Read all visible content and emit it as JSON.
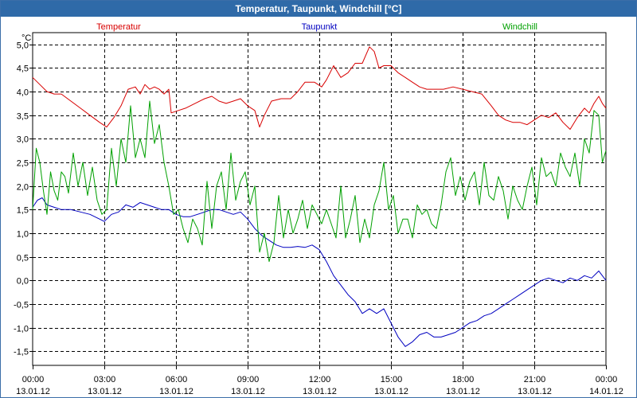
{
  "chart_data": {
    "type": "line",
    "title": "Temperatur, Taupunkt, Windchill [°C]",
    "ylabel": "°C",
    "ylim": [
      -1.8,
      5.25
    ],
    "xlim": [
      0,
      24
    ],
    "grid": true,
    "y_ticks": [
      "5,0",
      "4,5",
      "4,0",
      "3,5",
      "3,0",
      "2,5",
      "2,0",
      "1,5",
      "1,0",
      "0,5",
      "0,0",
      "-0,5",
      "-1,0",
      "-1,5"
    ],
    "y_tick_values": [
      5.0,
      4.5,
      4.0,
      3.5,
      3.0,
      2.5,
      2.0,
      1.5,
      1.0,
      0.5,
      0.0,
      -0.5,
      -1.0,
      -1.5
    ],
    "x_ticks": [
      {
        "hour": 0,
        "time": "00:00",
        "date": "13.01.12"
      },
      {
        "hour": 3,
        "time": "03:00",
        "date": "13.01.12"
      },
      {
        "hour": 6,
        "time": "06:00",
        "date": "13.01.12"
      },
      {
        "hour": 9,
        "time": "09:00",
        "date": "13.01.12"
      },
      {
        "hour": 12,
        "time": "12:00",
        "date": "13.01.12"
      },
      {
        "hour": 15,
        "time": "15:00",
        "date": "13.01.12"
      },
      {
        "hour": 18,
        "time": "18:00",
        "date": "13.01.12"
      },
      {
        "hour": 21,
        "time": "21:00",
        "date": "13.01.12"
      },
      {
        "hour": 24,
        "time": "00:00",
        "date": "14.01.12"
      }
    ],
    "series": [
      {
        "name": "Temperatur",
        "color": "#d80000",
        "x": [
          0,
          0.3,
          0.6,
          0.9,
          1.2,
          1.6,
          2.0,
          2.4,
          2.8,
          3.1,
          3.4,
          3.7,
          4.0,
          4.3,
          4.5,
          4.7,
          4.9,
          5.1,
          5.3,
          5.5,
          5.7,
          5.8,
          6.1,
          6.4,
          6.8,
          7.2,
          7.5,
          7.8,
          8.1,
          8.4,
          8.7,
          9.0,
          9.3,
          9.5,
          9.7,
          10.0,
          10.4,
          10.8,
          11.1,
          11.4,
          11.8,
          12.1,
          12.3,
          12.6,
          12.9,
          13.2,
          13.5,
          13.8,
          14.1,
          14.3,
          14.5,
          14.7,
          15.0,
          15.3,
          15.6,
          15.9,
          16.2,
          16.5,
          16.8,
          17.2,
          17.6,
          18.0,
          18.4,
          18.8,
          19.2,
          19.5,
          19.8,
          20.1,
          20.4,
          20.7,
          21.0,
          21.3,
          21.6,
          21.9,
          22.2,
          22.5,
          22.8,
          23.1,
          23.3,
          23.5,
          23.7,
          23.85,
          24.0
        ],
        "values": [
          4.3,
          4.15,
          4.0,
          3.95,
          3.95,
          3.8,
          3.65,
          3.5,
          3.35,
          3.25,
          3.45,
          3.7,
          4.05,
          4.1,
          3.95,
          4.15,
          4.05,
          4.1,
          4.05,
          3.95,
          4.05,
          3.55,
          3.6,
          3.65,
          3.75,
          3.85,
          3.9,
          3.8,
          3.75,
          3.8,
          3.85,
          3.7,
          3.6,
          3.25,
          3.5,
          3.8,
          3.85,
          3.85,
          4.0,
          4.2,
          4.2,
          4.1,
          4.25,
          4.55,
          4.3,
          4.4,
          4.6,
          4.6,
          4.95,
          4.85,
          4.5,
          4.55,
          4.55,
          4.4,
          4.3,
          4.2,
          4.1,
          4.05,
          4.05,
          4.05,
          4.1,
          4.05,
          4.0,
          3.95,
          3.7,
          3.5,
          3.4,
          3.35,
          3.35,
          3.3,
          3.4,
          3.5,
          3.45,
          3.55,
          3.35,
          3.2,
          3.45,
          3.65,
          3.55,
          3.75,
          3.9,
          3.75,
          3.65
        ]
      },
      {
        "name": "Taupunkt",
        "color": "#0000c0",
        "x": [
          0,
          0.2,
          0.4,
          0.6,
          0.9,
          1.2,
          1.6,
          2.0,
          2.4,
          2.8,
          3.0,
          3.3,
          3.6,
          3.9,
          4.2,
          4.5,
          4.8,
          5.1,
          5.4,
          5.7,
          6.0,
          6.3,
          6.6,
          6.9,
          7.2,
          7.5,
          7.8,
          8.1,
          8.4,
          8.7,
          9.0,
          9.3,
          9.6,
          9.9,
          10.2,
          10.5,
          10.8,
          11.1,
          11.4,
          11.7,
          12.0,
          12.3,
          12.6,
          12.9,
          13.2,
          13.5,
          13.8,
          14.1,
          14.4,
          14.7,
          15.0,
          15.3,
          15.6,
          15.9,
          16.2,
          16.5,
          16.8,
          17.1,
          17.4,
          17.7,
          18.0,
          18.3,
          18.6,
          18.9,
          19.2,
          19.5,
          19.8,
          20.1,
          20.4,
          20.7,
          21.0,
          21.3,
          21.6,
          21.9,
          22.2,
          22.5,
          22.8,
          23.1,
          23.4,
          23.7,
          24.0
        ],
        "values": [
          1.55,
          1.7,
          1.75,
          1.6,
          1.55,
          1.5,
          1.5,
          1.45,
          1.4,
          1.3,
          1.25,
          1.4,
          1.45,
          1.6,
          1.55,
          1.65,
          1.6,
          1.55,
          1.5,
          1.5,
          1.4,
          1.35,
          1.35,
          1.4,
          1.45,
          1.5,
          1.5,
          1.45,
          1.4,
          1.45,
          1.3,
          1.1,
          0.95,
          0.85,
          0.75,
          0.7,
          0.7,
          0.72,
          0.7,
          0.75,
          0.65,
          0.4,
          0.1,
          -0.1,
          -0.3,
          -0.45,
          -0.7,
          -0.6,
          -0.7,
          -0.6,
          -0.9,
          -1.2,
          -1.4,
          -1.3,
          -1.15,
          -1.1,
          -1.2,
          -1.2,
          -1.15,
          -1.1,
          -1.0,
          -0.9,
          -0.85,
          -0.75,
          -0.7,
          -0.6,
          -0.5,
          -0.4,
          -0.3,
          -0.2,
          -0.1,
          0.0,
          0.05,
          0.0,
          -0.05,
          0.05,
          0.0,
          0.1,
          0.05,
          0.2,
          0.0
        ]
      },
      {
        "name": "Windchill",
        "color": "#00a000",
        "x": [
          0,
          0.15,
          0.3,
          0.45,
          0.6,
          0.75,
          0.9,
          1.05,
          1.2,
          1.35,
          1.5,
          1.7,
          1.9,
          2.1,
          2.3,
          2.5,
          2.7,
          2.9,
          3.1,
          3.3,
          3.5,
          3.7,
          3.9,
          4.1,
          4.3,
          4.5,
          4.7,
          4.9,
          5.1,
          5.3,
          5.5,
          5.7,
          5.9,
          6.1,
          6.3,
          6.5,
          6.7,
          6.9,
          7.1,
          7.3,
          7.5,
          7.7,
          7.9,
          8.1,
          8.3,
          8.5,
          8.7,
          8.9,
          9.1,
          9.3,
          9.5,
          9.7,
          9.9,
          10.1,
          10.3,
          10.5,
          10.7,
          10.9,
          11.1,
          11.3,
          11.5,
          11.7,
          11.9,
          12.1,
          12.3,
          12.5,
          12.7,
          12.9,
          13.1,
          13.3,
          13.5,
          13.7,
          13.9,
          14.1,
          14.3,
          14.5,
          14.7,
          14.9,
          15.1,
          15.3,
          15.5,
          15.7,
          15.9,
          16.1,
          16.3,
          16.5,
          16.7,
          16.9,
          17.1,
          17.3,
          17.5,
          17.7,
          17.9,
          18.1,
          18.3,
          18.5,
          18.7,
          18.9,
          19.1,
          19.3,
          19.5,
          19.7,
          19.9,
          20.1,
          20.3,
          20.5,
          20.7,
          20.9,
          21.1,
          21.3,
          21.5,
          21.7,
          21.9,
          22.1,
          22.3,
          22.5,
          22.7,
          22.9,
          23.1,
          23.3,
          23.5,
          23.7,
          23.85,
          24.0
        ],
        "values": [
          1.5,
          2.8,
          2.5,
          1.9,
          1.4,
          2.3,
          1.9,
          1.7,
          2.3,
          2.2,
          1.85,
          2.7,
          2.0,
          2.5,
          1.8,
          2.4,
          1.7,
          1.4,
          1.5,
          2.8,
          2.0,
          3.0,
          2.5,
          3.7,
          2.6,
          3.0,
          2.6,
          3.8,
          2.9,
          3.3,
          2.5,
          2.0,
          1.4,
          1.5,
          1.1,
          0.8,
          1.3,
          1.1,
          0.75,
          2.1,
          1.1,
          2.0,
          2.3,
          1.5,
          2.7,
          1.7,
          2.1,
          2.3,
          1.6,
          2.0,
          0.6,
          1.0,
          0.4,
          0.8,
          1.8,
          0.9,
          1.5,
          1.0,
          1.3,
          1.7,
          1.1,
          1.6,
          1.4,
          1.2,
          1.5,
          1.2,
          0.9,
          2.0,
          0.9,
          1.3,
          1.8,
          0.8,
          1.3,
          0.9,
          1.6,
          1.9,
          2.5,
          1.5,
          1.8,
          1.0,
          1.3,
          1.3,
          0.9,
          1.6,
          1.4,
          1.5,
          1.2,
          1.1,
          1.6,
          2.3,
          2.6,
          1.8,
          2.2,
          1.7,
          2.1,
          2.3,
          1.6,
          2.5,
          1.8,
          1.7,
          2.2,
          1.9,
          1.3,
          2.0,
          1.7,
          1.5,
          2.0,
          2.4,
          1.6,
          2.6,
          2.2,
          2.3,
          2.0,
          2.7,
          2.4,
          2.2,
          2.7,
          2.0,
          3.0,
          2.7,
          3.6,
          3.5,
          2.5,
          2.75
        ]
      }
    ]
  }
}
